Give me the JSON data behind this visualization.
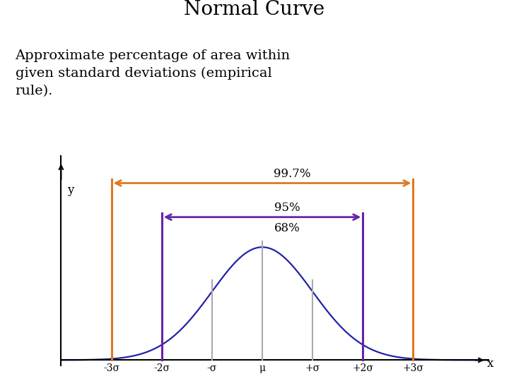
{
  "title": "Normal Curve",
  "subtitle_lines": [
    "Approximate percentage of area within",
    "given standard deviations (empirical",
    "rule)."
  ],
  "xlabel": "x",
  "ylabel": "y",
  "curve_color": "#2222aa",
  "curve_linewidth": 1.6,
  "vline_colors": {
    "pm3": "#e07820",
    "pm2": "#6622aa",
    "pm1": "#aaaaaa",
    "mu": "#aaaaaa"
  },
  "labels": {
    "997": "99.7%",
    "95": "95%",
    "68": "68%"
  },
  "tick_labels": [
    "-3σ",
    "-2σ",
    "-σ",
    "μ",
    "+σ",
    "+2σ",
    "+3σ"
  ],
  "sigma_positions": [
    -3,
    -2,
    -1,
    0,
    1,
    2,
    3
  ],
  "xlim": [
    -4.0,
    4.5
  ],
  "ylim": [
    -0.02,
    0.72
  ],
  "background_color": "#ffffff",
  "title_fontsize": 20,
  "subtitle_fontsize": 14,
  "tick_fontsize": 10,
  "label_fontsize": 12
}
